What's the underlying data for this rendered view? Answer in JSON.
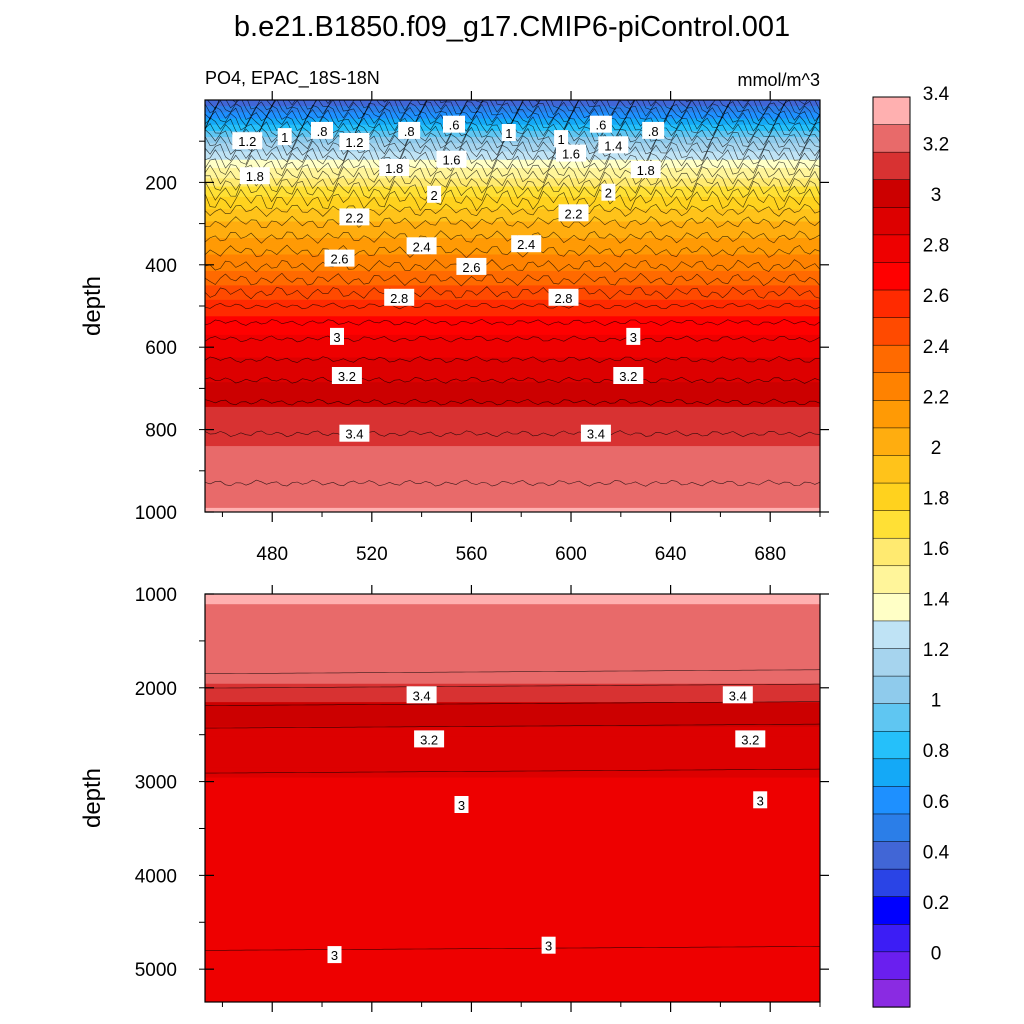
{
  "chart_data": {
    "type": "contour",
    "title": "b.e21.B1850.f09_g17.CMIP6-piControl.001",
    "variable_label": "PO4, EPAC_18S-18N",
    "units": "mmol/m^3",
    "x_ticks": [
      "480",
      "520",
      "560",
      "600",
      "640",
      "680"
    ],
    "x_tick_values": [
      480,
      520,
      560,
      600,
      640,
      680
    ],
    "xlim": [
      453,
      700
    ],
    "colorbar": {
      "levels": [
        0,
        0.2,
        0.4,
        0.6,
        0.8,
        1,
        1.2,
        1.4,
        1.6,
        1.8,
        2,
        2.2,
        2.4,
        2.6,
        2.8,
        3,
        3.2,
        3.4
      ],
      "labels": [
        "0",
        "0.2",
        "0.4",
        "0.6",
        "0.8",
        "1",
        "1.2",
        "1.4",
        "1.6",
        "1.8",
        "2",
        "2.2",
        "2.4",
        "2.6",
        "2.8",
        "3",
        "3.2",
        "3.4"
      ],
      "colors": [
        "#8a2be2",
        "#6a1fef",
        "#3c1df5",
        "#0000ff",
        "#2a44e6",
        "#4166d6",
        "#2b7ee8",
        "#1e90ff",
        "#14a9f7",
        "#25c0fa",
        "#5fc6f2",
        "#8fcbec",
        "#a6d4ee",
        "#bfe3f5",
        "#ffffc6",
        "#fff59a",
        "#ffea70",
        "#ffe035",
        "#ffd21e",
        "#ffc31a",
        "#ffad0f",
        "#ff9a05",
        "#ff8200",
        "#ff6a00",
        "#ff4a00",
        "#ff2a00",
        "#ff0000",
        "#ee0000",
        "#dd0000",
        "#cc0000",
        "#d83232",
        "#e86a6a",
        "#ffb0b0"
      ]
    },
    "panels": [
      {
        "name": "upper",
        "ylabel": "depth",
        "ylim": [
          0,
          1000
        ],
        "y_ticks": [
          "200",
          "400",
          "600",
          "800",
          "1000"
        ],
        "y_tick_values": [
          200,
          400,
          600,
          800,
          1000
        ],
        "show_x_tick_labels": true,
        "profile": [
          {
            "depth": 0,
            "value": 0.5
          },
          {
            "depth": 50,
            "value": 0.9
          },
          {
            "depth": 100,
            "value": 1.25
          },
          {
            "depth": 150,
            "value": 1.55
          },
          {
            "depth": 190,
            "value": 1.75
          },
          {
            "depth": 230,
            "value": 1.95
          },
          {
            "depth": 280,
            "value": 2.15
          },
          {
            "depth": 350,
            "value": 2.35
          },
          {
            "depth": 420,
            "value": 2.55
          },
          {
            "depth": 500,
            "value": 2.8
          },
          {
            "depth": 580,
            "value": 3.0
          },
          {
            "depth": 680,
            "value": 3.2
          },
          {
            "depth": 760,
            "value": 3.35
          },
          {
            "depth": 860,
            "value": 3.45
          },
          {
            "depth": 1000,
            "value": 3.55
          }
        ],
        "contour_labels": [
          {
            "text": "1.2",
            "x": 470,
            "depth": 100
          },
          {
            "text": "1",
            "x": 485,
            "depth": 90
          },
          {
            "text": ".8",
            "x": 500,
            "depth": 75
          },
          {
            "text": "1.2",
            "x": 513,
            "depth": 102
          },
          {
            "text": ".8",
            "x": 535,
            "depth": 75
          },
          {
            "text": ".6",
            "x": 553,
            "depth": 60
          },
          {
            "text": "1",
            "x": 575,
            "depth": 80
          },
          {
            "text": "1",
            "x": 596,
            "depth": 95
          },
          {
            "text": ".6",
            "x": 612,
            "depth": 60
          },
          {
            "text": ".8",
            "x": 633,
            "depth": 75
          },
          {
            "text": "1.8",
            "x": 473,
            "depth": 185
          },
          {
            "text": "1.8",
            "x": 529,
            "depth": 165
          },
          {
            "text": "1.6",
            "x": 552,
            "depth": 145
          },
          {
            "text": "1.6",
            "x": 600,
            "depth": 130
          },
          {
            "text": "1.4",
            "x": 617,
            "depth": 110
          },
          {
            "text": "1.8",
            "x": 630,
            "depth": 170
          },
          {
            "text": "2",
            "x": 545,
            "depth": 230
          },
          {
            "text": "2.2",
            "x": 513,
            "depth": 285
          },
          {
            "text": "2",
            "x": 615,
            "depth": 225
          },
          {
            "text": "2.2",
            "x": 601,
            "depth": 275
          },
          {
            "text": "2.4",
            "x": 540,
            "depth": 355
          },
          {
            "text": "2.4",
            "x": 582,
            "depth": 350
          },
          {
            "text": "2.6",
            "x": 507,
            "depth": 385
          },
          {
            "text": "2.6",
            "x": 560,
            "depth": 405
          },
          {
            "text": "2.8",
            "x": 531,
            "depth": 480
          },
          {
            "text": "2.8",
            "x": 597,
            "depth": 480
          },
          {
            "text": "3",
            "x": 506,
            "depth": 575
          },
          {
            "text": "3",
            "x": 625,
            "depth": 575
          },
          {
            "text": "3.2",
            "x": 510,
            "depth": 670
          },
          {
            "text": "3.2",
            "x": 623,
            "depth": 670
          },
          {
            "text": "3.4",
            "x": 513,
            "depth": 810
          },
          {
            "text": "3.4",
            "x": 610,
            "depth": 810
          }
        ]
      },
      {
        "name": "lower",
        "ylabel": "depth",
        "ylim": [
          1000,
          5350
        ],
        "y_ticks": [
          "1000",
          "2000",
          "3000",
          "4000",
          "5000"
        ],
        "y_tick_values": [
          1000,
          2000,
          3000,
          4000,
          5000
        ],
        "show_x_tick_labels": false,
        "profile": [
          {
            "depth": 1000,
            "value": 3.55
          },
          {
            "depth": 1850,
            "value": 3.5
          },
          {
            "depth": 2080,
            "value": 3.35
          },
          {
            "depth": 2300,
            "value": 3.25
          },
          {
            "depth": 2560,
            "value": 3.15
          },
          {
            "depth": 3260,
            "value": 3.05
          },
          {
            "depth": 4800,
            "value": 3.0
          },
          {
            "depth": 5350,
            "value": 3.05
          }
        ],
        "contour_labels": [
          {
            "text": "3.4",
            "x": 540,
            "depth": 2080
          },
          {
            "text": "3.4",
            "x": 667,
            "depth": 2080
          },
          {
            "text": "3.2",
            "x": 543,
            "depth": 2550
          },
          {
            "text": "3.2",
            "x": 672,
            "depth": 2550
          },
          {
            "text": "3",
            "x": 556,
            "depth": 3250
          },
          {
            "text": "3",
            "x": 676,
            "depth": 3200
          },
          {
            "text": "3",
            "x": 505,
            "depth": 4850
          },
          {
            "text": "3",
            "x": 591,
            "depth": 4750
          }
        ]
      }
    ]
  }
}
